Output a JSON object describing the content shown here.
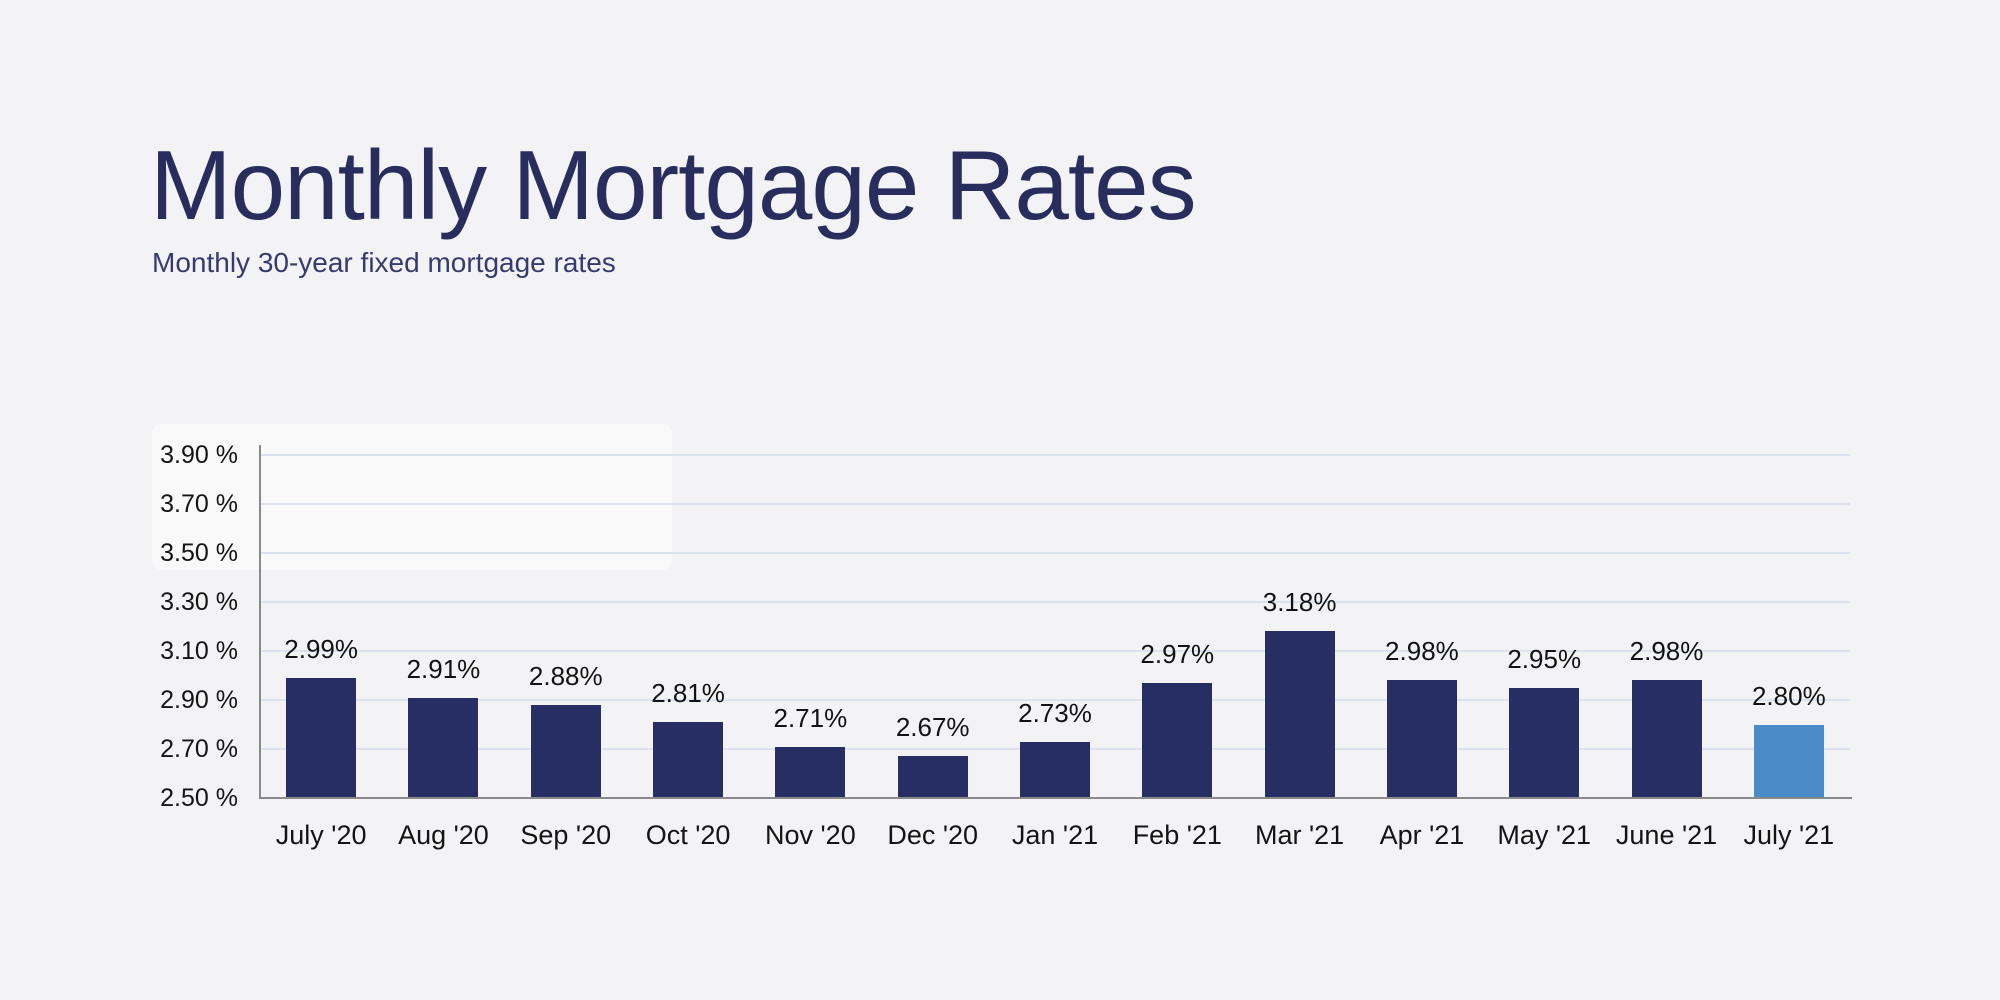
{
  "header": {
    "title": "Monthly Mortgage Rates",
    "subtitle": "Monthly 30-year fixed mortgage rates"
  },
  "chart_data": {
    "type": "bar",
    "title": "Monthly Mortgage Rates",
    "subtitle": "Monthly 30-year fixed mortgage rates",
    "categories": [
      "July '20",
      "Aug '20",
      "Sep '20",
      "Oct '20",
      "Nov '20",
      "Dec '20",
      "Jan '21",
      "Feb '21",
      "Mar '21",
      "Apr '21",
      "May '21",
      "June '21",
      "July '21"
    ],
    "values": [
      2.99,
      2.91,
      2.88,
      2.81,
      2.71,
      2.67,
      2.73,
      2.97,
      3.18,
      2.98,
      2.95,
      2.98,
      2.8
    ],
    "value_labels": [
      "2.99%",
      "2.91%",
      "2.88%",
      "2.81%",
      "2.71%",
      "2.67%",
      "2.73%",
      "2.97%",
      "3.18%",
      "2.98%",
      "2.95%",
      "2.98%",
      "2.80%"
    ],
    "highlight_index": 12,
    "y_ticks": [
      {
        "value": 3.9,
        "label": "3.90 %"
      },
      {
        "value": 3.7,
        "label": "3.70 %"
      },
      {
        "value": 3.5,
        "label": "3.50 %"
      },
      {
        "value": 3.3,
        "label": "3.30 %"
      },
      {
        "value": 3.1,
        "label": "3.10 %"
      },
      {
        "value": 2.9,
        "label": "2.90 %"
      },
      {
        "value": 2.7,
        "label": "2.70 %"
      },
      {
        "value": 2.5,
        "label": "2.50 %"
      }
    ],
    "ylim": [
      2.5,
      3.9
    ],
    "xlabel": "",
    "ylabel": "",
    "grid": true,
    "legend": false,
    "colors": {
      "bar": "#272e64",
      "highlight_bar": "#4a8bc8",
      "gridline": "#dce3ef",
      "axis": "#8a8a8a",
      "title": "#272e5e",
      "subtitle": "#353b6e",
      "label": "#141414",
      "background": "#f3f3f5"
    }
  }
}
